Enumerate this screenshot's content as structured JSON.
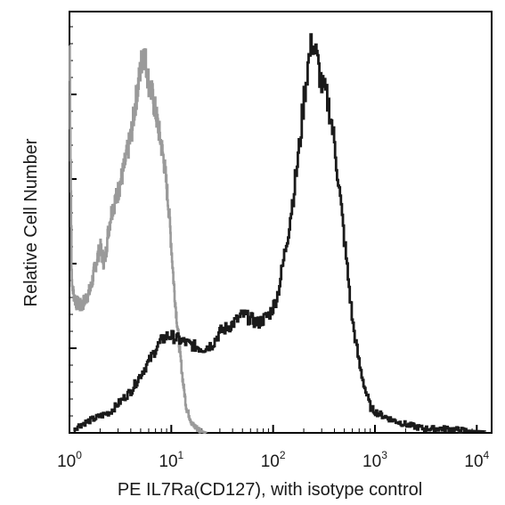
{
  "chart_data": {
    "type": "line",
    "title": "",
    "xlabel": "PE IL7Ra(CD127), with isotype control",
    "ylabel": "Relative Cell Number",
    "x_scale": "log",
    "xlim": [
      1,
      14000
    ],
    "ylim": [
      0,
      100
    ],
    "x_tick_labels": [
      {
        "base": "10",
        "exp": "0",
        "value": 1
      },
      {
        "base": "10",
        "exp": "1",
        "value": 10
      },
      {
        "base": "10",
        "exp": "2",
        "value": 100
      },
      {
        "base": "10",
        "exp": "3",
        "value": 1000
      },
      {
        "base": "10",
        "exp": "4",
        "value": 10000
      }
    ],
    "y_ticks_labeled": false,
    "grid": false,
    "legend": "none",
    "series": [
      {
        "color": "#9a9a9a",
        "x": [
          1.0,
          1.05,
          1.15,
          1.3,
          1.45,
          1.6,
          1.8,
          2.0,
          2.2,
          2.4,
          2.6,
          2.9,
          3.2,
          3.5,
          3.8,
          4.1,
          4.4,
          4.7,
          5.0,
          5.3,
          5.6,
          6.0,
          6.5,
          7.0,
          7.5,
          8.0,
          8.5,
          9.0,
          9.5,
          10.0,
          10.5,
          11.0,
          11.5,
          12.0,
          12.5,
          13.0,
          13.5,
          14.0,
          15.0,
          16.0,
          18.0,
          20.0,
          22.0
        ],
        "y": [
          92,
          35,
          31,
          30,
          32,
          34,
          40,
          44,
          40,
          48,
          53,
          56,
          60,
          64,
          68,
          72,
          78,
          82,
          87,
          91,
          88,
          83,
          80,
          76,
          72,
          68,
          64,
          58,
          52,
          44,
          36,
          30,
          25,
          20,
          16,
          12,
          9,
          6,
          4,
          2,
          1,
          0.3,
          0
        ]
      },
      {
        "color": "#1a1a1a",
        "x": [
          1.1,
          1.3,
          1.6,
          2.0,
          2.5,
          3.0,
          4.0,
          5.0,
          6.0,
          7.0,
          8.0,
          9.0,
          10.0,
          12.0,
          15.0,
          20.0,
          25.0,
          30.0,
          35.0,
          40.0,
          45.0,
          50.0,
          60.0,
          70.0,
          80.0,
          90.0,
          100.0,
          110.0,
          120.0,
          140.0,
          160.0,
          180.0,
          200.0,
          220.0,
          240.0,
          260.0,
          280.0,
          300.0,
          330.0,
          360.0,
          400.0,
          450.0,
          500.0,
          550.0,
          600.0,
          700.0,
          800.0,
          900.0,
          1000.0,
          1200.0,
          1500.0,
          2000.0,
          3000.0,
          5000.0,
          8000.0,
          12000.0
        ],
        "y": [
          1,
          2,
          3,
          4,
          5,
          7,
          10,
          14,
          17,
          20,
          22,
          23,
          23,
          22,
          21,
          20,
          21,
          24,
          25,
          26,
          27,
          28,
          27,
          26,
          27,
          28,
          30,
          33,
          38,
          48,
          58,
          68,
          80,
          88,
          93,
          90,
          86,
          82,
          80,
          76,
          68,
          56,
          45,
          35,
          26,
          16,
          10,
          6,
          5,
          4,
          3,
          2,
          1,
          1,
          0.5,
          0.3
        ]
      }
    ]
  }
}
